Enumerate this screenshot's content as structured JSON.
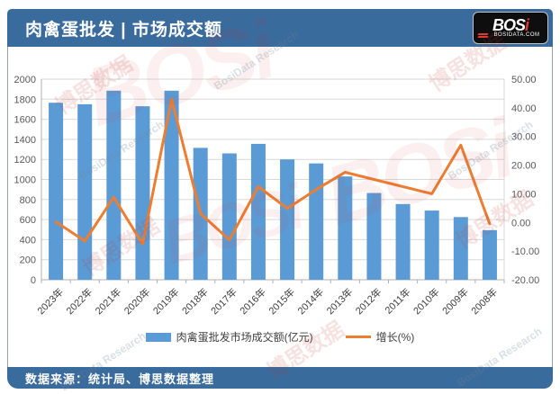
{
  "header": {
    "title": "肉禽蛋批发 | 市场成交额",
    "logo_main": "BOS",
    "logo_accent": "i",
    "logo_sub": "BOSIDATA.COM"
  },
  "footer": {
    "source": "数据来源：统计局、博思数据整理"
  },
  "watermark": {
    "cn": "博思数据",
    "en": "BosiData Research",
    "logo": "BOSi"
  },
  "colors": {
    "header_bg": "#3a6b9d",
    "bar": "#5b9bd5",
    "line": "#ed7d31",
    "grid": "#d9d9d9",
    "axis_line": "#b0b0b0",
    "axis_text": "#595959",
    "xlabel_text": "#404040",
    "logo_red": "#e03a2f"
  },
  "chart_data": {
    "type": "bar",
    "subtype": "bar-line-combo",
    "title": "肉禽蛋批发市场成交额",
    "categories": [
      "2023年",
      "2022年",
      "2021年",
      "2020年",
      "2019年",
      "2018年",
      "2017年",
      "2016年",
      "2015年",
      "2014年",
      "2013年",
      "2012年",
      "2011年",
      "2010年",
      "2009年",
      "2008年"
    ],
    "series": [
      {
        "name": "肉禽蛋批发市场成交额(亿元)",
        "type": "bar",
        "axis": "left",
        "color": "#5b9bd5",
        "values": [
          1765,
          1750,
          1885,
          1730,
          1885,
          1315,
          1260,
          1355,
          1200,
          1160,
          1030,
          865,
          755,
          690,
          625,
          495
        ]
      },
      {
        "name": "增长(%)",
        "type": "line",
        "axis": "right",
        "color": "#ed7d31",
        "values": [
          0.2,
          -6.5,
          8.8,
          -7.5,
          43.0,
          3.1,
          -6.1,
          12.5,
          4.9,
          11.5,
          17.5,
          15.0,
          12.5,
          10.0,
          27.0,
          -0.5
        ]
      }
    ],
    "left_axis": {
      "min": 0,
      "max": 2000,
      "step": 200,
      "ticks": [
        "2000",
        "1800",
        "1600",
        "1400",
        "1200",
        "1000",
        "800",
        "600",
        "400",
        "200",
        "0"
      ]
    },
    "right_axis": {
      "min": -20,
      "max": 50,
      "step": 10,
      "ticks": [
        "50.00",
        "40.00",
        "30.00",
        "20.00",
        "10.00",
        "0.00",
        "-10.00",
        "-20.00"
      ]
    },
    "grid": true,
    "legend_position": "bottom"
  }
}
